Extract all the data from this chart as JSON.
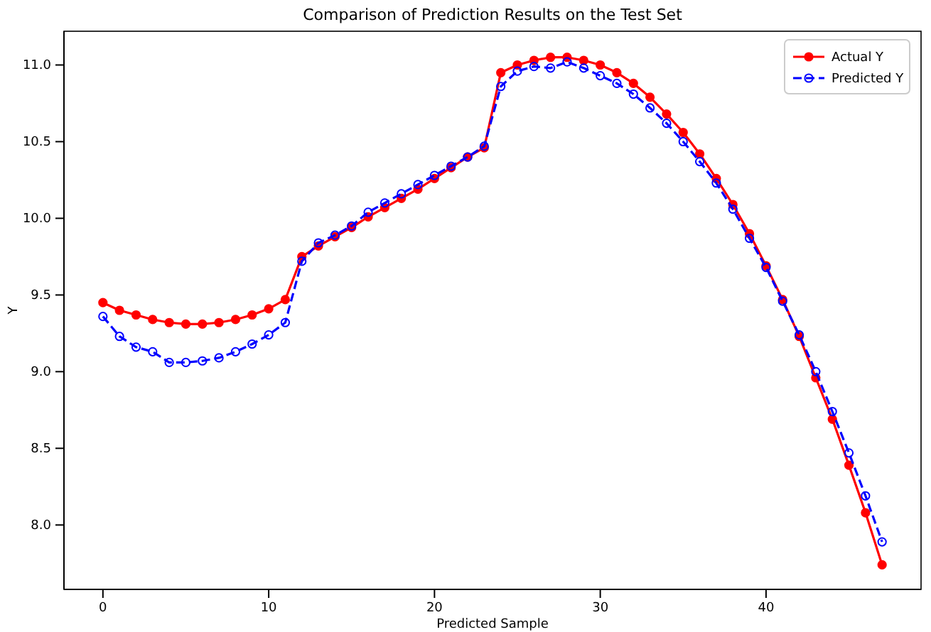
{
  "chart_data": {
    "type": "line",
    "title": "Comparison of Prediction Results on the Test Set",
    "xlabel": "Predicted Sample",
    "ylabel": "Y",
    "x": [
      0,
      1,
      2,
      3,
      4,
      5,
      6,
      7,
      8,
      9,
      10,
      11,
      12,
      13,
      14,
      15,
      16,
      17,
      18,
      19,
      20,
      21,
      22,
      23,
      24,
      25,
      26,
      27,
      28,
      29,
      30,
      31,
      32,
      33,
      34,
      35,
      36,
      37,
      38,
      39,
      40,
      41,
      42,
      43,
      44,
      45,
      46,
      47
    ],
    "series": [
      {
        "name": "Actual Y",
        "color": "#ff0000",
        "marker": "circle",
        "line_style": "solid",
        "values": [
          9.45,
          9.4,
          9.37,
          9.34,
          9.32,
          9.31,
          9.31,
          9.32,
          9.34,
          9.37,
          9.41,
          9.47,
          9.75,
          9.82,
          9.88,
          9.94,
          10.01,
          10.07,
          10.13,
          10.19,
          10.26,
          10.33,
          10.4,
          10.46,
          10.95,
          11.0,
          11.03,
          11.05,
          11.05,
          11.03,
          11.0,
          10.95,
          10.88,
          10.79,
          10.68,
          10.56,
          10.42,
          10.26,
          10.09,
          9.9,
          9.69,
          9.47,
          9.23,
          8.96,
          8.69,
          8.39,
          8.08,
          7.74
        ]
      },
      {
        "name": "Predicted Y",
        "color": "#0000ff",
        "marker": "circle",
        "line_style": "dashed",
        "values": [
          9.36,
          9.23,
          9.16,
          9.13,
          9.06,
          9.06,
          9.07,
          9.09,
          9.13,
          9.18,
          9.24,
          9.32,
          9.72,
          9.84,
          9.89,
          9.95,
          10.04,
          10.1,
          10.16,
          10.22,
          10.28,
          10.34,
          10.4,
          10.47,
          10.86,
          10.96,
          10.99,
          10.98,
          11.02,
          10.98,
          10.93,
          10.88,
          10.81,
          10.72,
          10.62,
          10.5,
          10.37,
          10.23,
          10.06,
          9.87,
          9.68,
          9.46,
          9.24,
          9.0,
          8.74,
          8.47,
          8.19,
          7.89
        ]
      }
    ],
    "xlim": [
      -2.35,
      49.35
    ],
    "xticks": [
      0,
      10,
      20,
      30,
      40
    ],
    "ylim": [
      7.58,
      11.22
    ],
    "yticks": [
      {
        "value": 8,
        "label": "8.0"
      },
      {
        "value": 8.5,
        "label": "8.5"
      },
      {
        "value": 9,
        "label": "9.0"
      },
      {
        "value": 9.5,
        "label": "9.5"
      },
      {
        "value": 10,
        "label": "10.0"
      },
      {
        "value": 10.5,
        "label": "10.5"
      },
      {
        "value": 11,
        "label": "11.0"
      }
    ],
    "legend": "top right",
    "grid": false
  }
}
